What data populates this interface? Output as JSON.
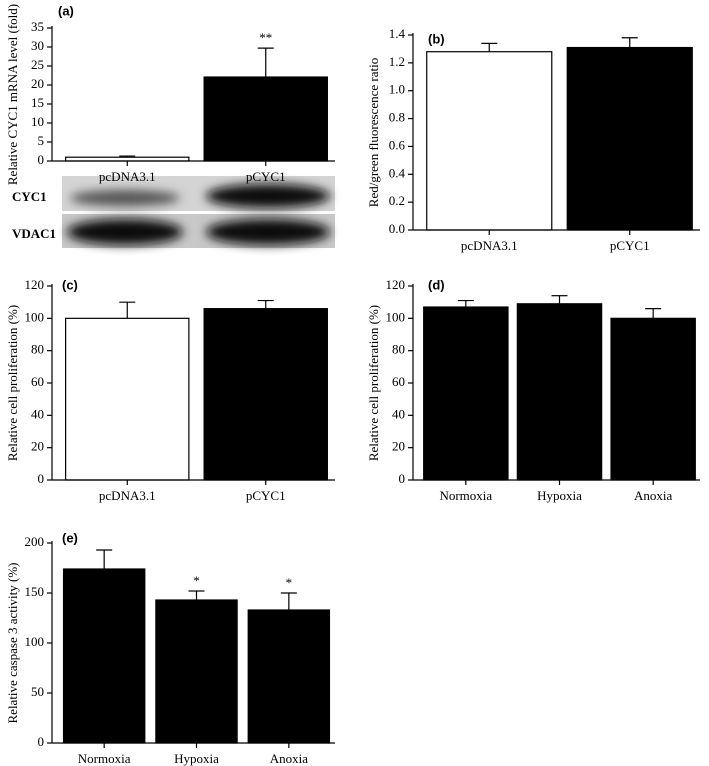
{
  "chart_data": [
    {
      "type": "bar",
      "panel_label": "(a)",
      "y_label": "Relative CYC1 mRNA level (fold)",
      "categories": [
        "pcDNA3.1",
        "pCYC1"
      ],
      "values": [
        1.0,
        22.1
      ],
      "errors": [
        0.3,
        7.6
      ],
      "colors": [
        "#ffffff",
        "#000000"
      ],
      "bar_labels": [
        null,
        "**"
      ],
      "ylim": [
        0,
        35
      ],
      "yticks": [
        0,
        5,
        10,
        15,
        20,
        25,
        30,
        35
      ],
      "blot_rows": [
        "CYC1",
        "VDAC1"
      ]
    },
    {
      "type": "bar",
      "panel_label": "(b)",
      "y_label": "Red/green fluorescence ratio",
      "categories": [
        "pcDNA3.1",
        "pCYC1"
      ],
      "values": [
        1.28,
        1.31
      ],
      "errors": [
        0.06,
        0.07
      ],
      "colors": [
        "#ffffff",
        "#000000"
      ],
      "ylim": [
        0,
        1.4
      ],
      "yticks": [
        {
          "value": 0,
          "label": "0.0"
        },
        {
          "value": 0.2,
          "label": "0.2"
        },
        {
          "value": 0.4,
          "label": "0.4"
        },
        {
          "value": 0.6,
          "label": "0.6"
        },
        {
          "value": 0.8,
          "label": "0.8"
        },
        {
          "value": 1,
          "label": "1.0"
        },
        {
          "value": 1.2,
          "label": "1.2"
        },
        {
          "value": 1.4,
          "label": "1.4"
        }
      ]
    },
    {
      "type": "bar",
      "panel_label": "(c)",
      "y_label": "Relative cell proliferation (%)",
      "categories": [
        "pcDNA3.1",
        "pCYC1"
      ],
      "values": [
        100,
        106
      ],
      "errors": [
        10,
        5
      ],
      "colors": [
        "#ffffff",
        "#000000"
      ],
      "ylim": [
        0,
        120
      ],
      "yticks": [
        0,
        20,
        40,
        60,
        80,
        100,
        120
      ]
    },
    {
      "type": "bar",
      "panel_label": "(d)",
      "y_label": "Relative cell proliferation (%)",
      "categories": [
        "Normoxia",
        "Hypoxia",
        "Anoxia"
      ],
      "values": [
        107,
        109,
        100
      ],
      "errors": [
        4,
        5,
        6
      ],
      "colors": [
        "#000000",
        "#000000",
        "#000000"
      ],
      "ylim": [
        0,
        120
      ],
      "yticks": [
        0,
        20,
        40,
        60,
        80,
        100,
        120
      ]
    },
    {
      "type": "bar",
      "panel_label": "(e)",
      "y_label": "Relative caspase 3 activity (%)",
      "categories": [
        "Normoxia",
        "Hypoxia",
        "Anoxia"
      ],
      "values": [
        174,
        143,
        133
      ],
      "errors": [
        19,
        9,
        17
      ],
      "colors": [
        "#000000",
        "#000000",
        "#000000"
      ],
      "bar_labels": [
        null,
        "*",
        "*"
      ],
      "ylim": [
        0,
        200
      ],
      "yticks": [
        0,
        50,
        100,
        150,
        200
      ]
    }
  ]
}
